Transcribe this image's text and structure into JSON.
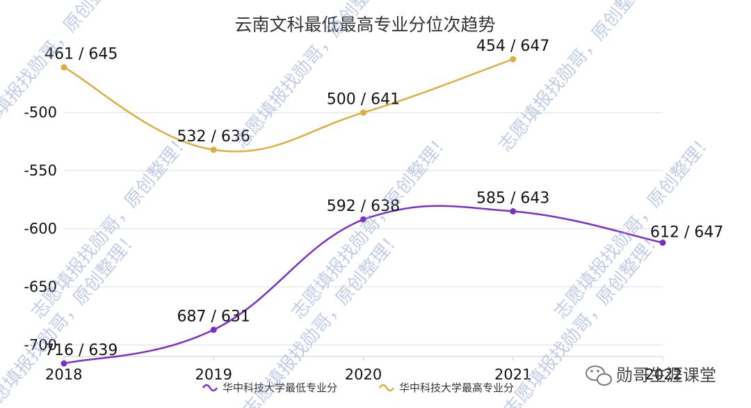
{
  "chart_data": {
    "type": "line",
    "title": "云南文科最低最高专业分位次趋势",
    "categories": [
      "2018",
      "2019",
      "2020",
      "2021",
      "2022"
    ],
    "yticks": [
      "-500",
      "-550",
      "-600",
      "-650",
      "-700"
    ],
    "ylim": [
      -710,
      -460
    ],
    "grid": true,
    "legend_position": "bottom",
    "series": [
      {
        "name": "华中科技大学最低专业分",
        "color": "#7b2fc9",
        "values": [
          -716,
          -687,
          -592,
          -585,
          -612
        ],
        "labels": [
          "716 / 639",
          "687 / 631",
          "592 / 638",
          "585 / 643",
          "612 / 647"
        ]
      },
      {
        "name": "华中科技大学最高专业分",
        "color": "#dcae3f",
        "values": [
          -461,
          -532,
          -500,
          -454,
          null
        ],
        "labels": [
          "461 / 645",
          "532 / 636",
          "500 / 641",
          "454 / 647",
          null
        ]
      }
    ]
  },
  "watermark": {
    "text": "志愿填报找勋哥，原创整理！"
  },
  "brand": {
    "name": "勋哥生涯课堂",
    "icon": "wechat-icon"
  }
}
